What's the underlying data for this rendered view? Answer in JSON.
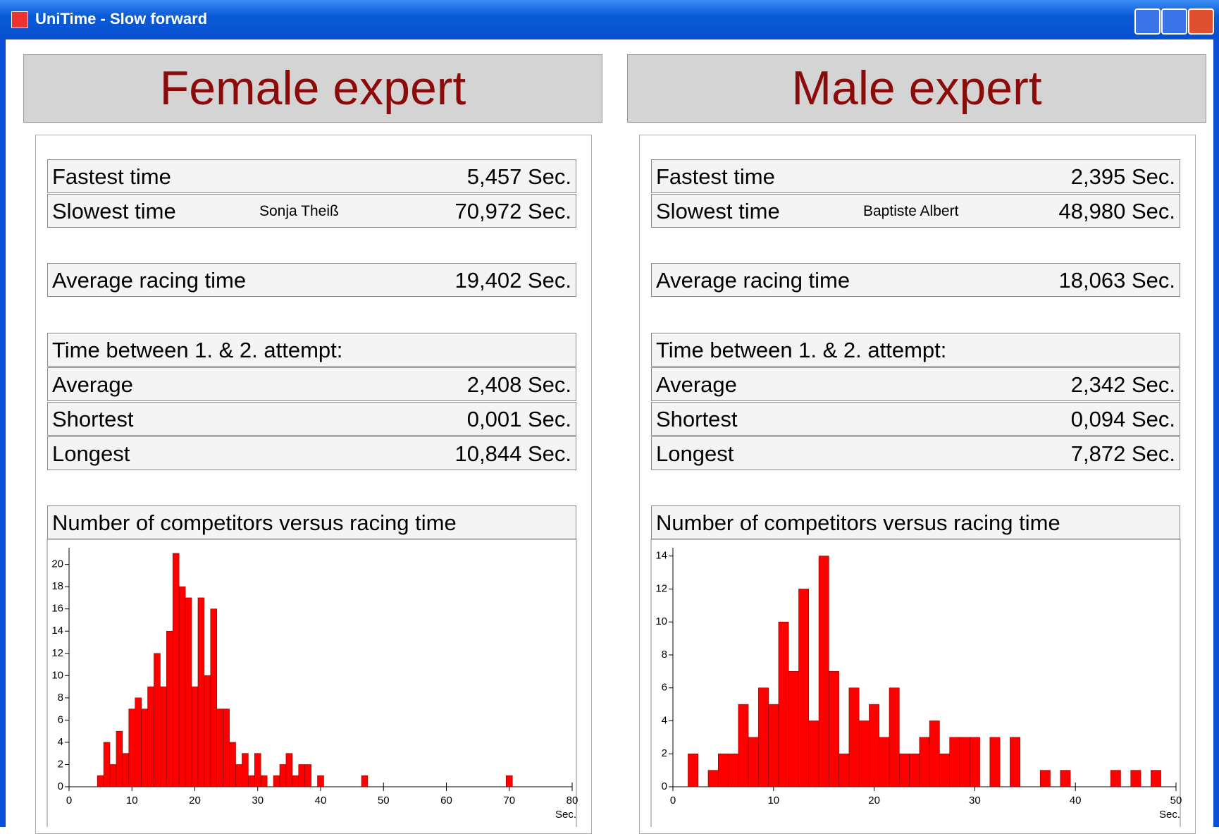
{
  "window": {
    "title": "UniTime  -  Slow forward"
  },
  "panels": [
    {
      "heading": "Female expert",
      "times": [
        {
          "label": "Fastest time",
          "value": "5,457 Sec."
        },
        {
          "label": "Slowest time",
          "name": "Sonja Theiß",
          "value": "70,972 Sec."
        }
      ],
      "average": {
        "label": "Average racing time",
        "value": "19,402 Sec."
      },
      "between": {
        "title": "Time between 1. & 2. attempt:",
        "rows": [
          {
            "label": "Average",
            "value": "2,408 Sec."
          },
          {
            "label": "Shortest",
            "value": "0,001 Sec."
          },
          {
            "label": "Longest",
            "value": "10,844 Sec."
          }
        ]
      }
    },
    {
      "heading": "Male expert",
      "times": [
        {
          "label": "Fastest time",
          "value": "2,395 Sec."
        },
        {
          "label": "Slowest time",
          "name": "Baptiste Albert",
          "value": "48,980 Sec."
        }
      ],
      "average": {
        "label": "Average racing time",
        "value": "18,063 Sec."
      },
      "between": {
        "title": "Time between 1. & 2. attempt:",
        "rows": [
          {
            "label": "Average",
            "value": "2,342 Sec."
          },
          {
            "label": "Shortest",
            "value": "0,094 Sec."
          },
          {
            "label": "Longest",
            "value": "7,872 Sec."
          }
        ]
      }
    }
  ],
  "chart_data": [
    {
      "type": "histogram",
      "title": "Number of competitors versus racing time",
      "xlabel": "Sec.",
      "color": "#ff0000",
      "bins": [
        4.5,
        5.5,
        6.5,
        7.5,
        8.5,
        9.5,
        10.5,
        11.5,
        12.5,
        13.5,
        14.5,
        15.5,
        16.5,
        17.5,
        18.5,
        19.5,
        20.5,
        21.5,
        22.5,
        23.5,
        24.5,
        25.5,
        26.5,
        27.5,
        28.5,
        29.5,
        30.5,
        31.5,
        32.5,
        33.5,
        34.5,
        35.5,
        36.5,
        37.5,
        38.5,
        39.5,
        40.5,
        41.5,
        42.5,
        43.5,
        44.5,
        45.5,
        46.5,
        47.5,
        48.5,
        49.5,
        50.5,
        51.5,
        52.5,
        53.5,
        54.5,
        55.5,
        56.5,
        57.5,
        58.5,
        59.5,
        60.5,
        61.5,
        62.5,
        63.5,
        64.5,
        65.5,
        66.5,
        67.5,
        68.5,
        69.5,
        70.5
      ],
      "values": [
        1,
        4,
        2,
        5,
        3,
        7,
        8,
        7,
        9,
        12,
        9,
        14,
        21,
        18,
        17,
        9,
        17,
        10,
        16,
        7,
        7,
        4,
        2,
        3,
        1,
        3,
        1,
        0,
        1,
        2,
        3,
        1,
        2,
        2,
        0,
        1,
        0,
        0,
        0,
        0,
        0,
        0,
        1,
        0,
        0,
        0,
        0,
        0,
        0,
        0,
        0,
        0,
        0,
        0,
        0,
        0,
        0,
        0,
        0,
        0,
        0,
        0,
        0,
        0,
        0,
        1
      ],
      "xlim": [
        0,
        80
      ],
      "xticks": [
        0,
        10,
        20,
        30,
        40,
        50,
        60,
        70,
        80
      ],
      "ylim": [
        0,
        21.5
      ],
      "yticks": [
        0,
        2,
        4,
        6,
        8,
        10,
        12,
        14,
        16,
        18,
        20
      ]
    },
    {
      "type": "histogram",
      "title": "Number of competitors versus racing time",
      "xlabel": "Sec.",
      "color": "#ff0000",
      "bins": [
        1.5,
        2.5,
        3.5,
        4.5,
        5.5,
        6.5,
        7.5,
        8.5,
        9.5,
        10.5,
        11.5,
        12.5,
        13.5,
        14.5,
        15.5,
        16.5,
        17.5,
        18.5,
        19.5,
        20.5,
        21.5,
        22.5,
        23.5,
        24.5,
        25.5,
        26.5,
        27.5,
        28.5,
        29.5,
        30.5,
        31.5,
        32.5,
        33.5,
        34.5,
        35.5,
        36.5,
        37.5,
        38.5,
        39.5,
        40.5,
        41.5,
        42.5,
        43.5,
        44.5,
        45.5,
        46.5,
        47.5,
        48.5
      ],
      "values": [
        2,
        0,
        1,
        2,
        2,
        5,
        3,
        6,
        5,
        10,
        7,
        12,
        4,
        14,
        7,
        2,
        6,
        4,
        5,
        3,
        6,
        2,
        2,
        3,
        4,
        2,
        3,
        3,
        3,
        0,
        3,
        0,
        3,
        0,
        0,
        1,
        0,
        1,
        0,
        0,
        0,
        0,
        1,
        0,
        1,
        0,
        1
      ],
      "xlim": [
        0,
        50
      ],
      "xticks": [
        0,
        10,
        20,
        30,
        40,
        50
      ],
      "ylim": [
        0,
        14.5
      ],
      "yticks": [
        0,
        2,
        4,
        6,
        8,
        10,
        12,
        14
      ]
    }
  ]
}
